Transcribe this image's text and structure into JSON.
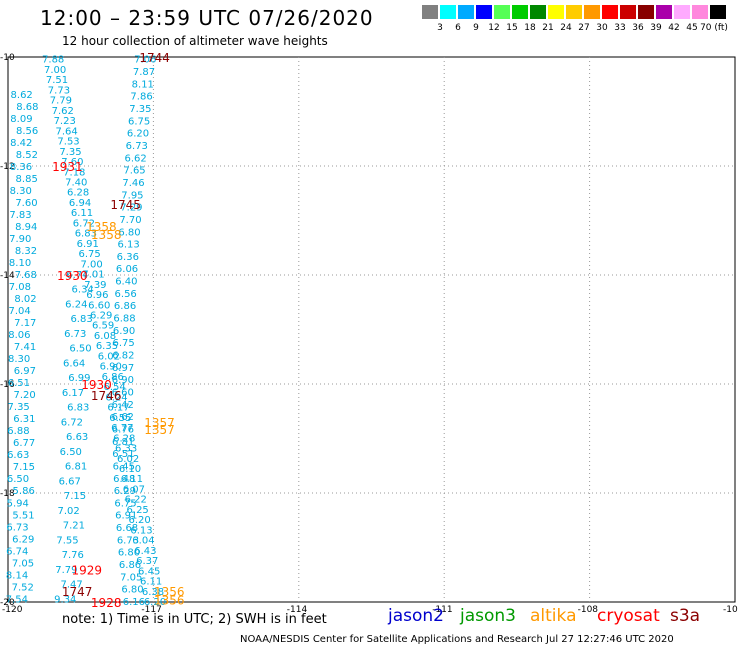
{
  "header": {
    "title": "12:00 – 23:59 UTC 07/26/2020",
    "subtitle": "12 hour collection of altimeter wave heights"
  },
  "legend_scale": {
    "labels": [
      "3",
      "6",
      "9",
      "12",
      "15",
      "18",
      "21",
      "24",
      "27",
      "30",
      "33",
      "36",
      "39",
      "42",
      "45",
      "70 (ft)"
    ],
    "colors": [
      "#808080",
      "#00ffff",
      "#00aaff",
      "#0000ff",
      "#55ff55",
      "#00cc00",
      "#008800",
      "#ffff00",
      "#ffcc00",
      "#ff9900",
      "#ff0000",
      "#cc0000",
      "#880000",
      "#aa00aa",
      "#ffaaff",
      "#ff88dd",
      "#000000"
    ]
  },
  "map": {
    "lon_ticks": [
      "-120",
      "-117",
      "-114",
      "-111",
      "-108",
      "-10"
    ],
    "lat_ticks": [
      "-10",
      "-12",
      "-14",
      "-16",
      "-18",
      "-20"
    ],
    "tracks": [
      {
        "color": "#00aadd",
        "values": [
          "7.88",
          "7.00",
          "7.51",
          "7.73",
          "7.79",
          "7.62",
          "7.23",
          "7.64",
          "7.53",
          "7.35",
          "7.60",
          "7.18",
          "7.40",
          "6.28",
          "6.94",
          "6.11",
          "6.72",
          "6.83",
          "6.91",
          "6.75",
          "7.00",
          "7.01",
          "7.39",
          "6.96",
          "6.60",
          "6.29",
          "6.59",
          "6.08",
          "6.35",
          "6.02",
          "6.90",
          "6.86",
          "6.54",
          "6.24",
          "6.17",
          "6.55",
          "6.77",
          "6.28",
          "6.33",
          "6.02",
          "6.10",
          "6.11",
          "6.07",
          "6.22",
          "6.25",
          "6.20",
          "6.13",
          "6.04",
          "6.43",
          "6.37",
          "6.45",
          "6.11",
          "6.38",
          "6.20"
        ]
      },
      {
        "color": "#00aadd",
        "values": [
          "7.06",
          "7.87",
          "8.11",
          "7.86",
          "7.35",
          "6.75",
          "6.20",
          "6.73",
          "6.62",
          "7.65",
          "7.46",
          "7.95",
          "7.29",
          "7.70",
          "6.80",
          "6.13",
          "6.36",
          "6.06",
          "6.40",
          "6.56",
          "6.86",
          "6.88",
          "6.90",
          "6.75",
          "6.82",
          "6.97",
          "6.90",
          "6.60",
          "6.42",
          "6.62",
          "6.76",
          "6.81",
          "6.51",
          "6.45",
          "6.48",
          "6.29",
          "6.75",
          "6.91",
          "6.68",
          "6.73",
          "6.80",
          "6.86",
          "7.05",
          "6.80",
          "6.16"
        ]
      },
      {
        "color": "#00aadd",
        "values": [
          "8.62",
          "8.68",
          "8.09",
          "8.56",
          "8.42",
          "8.52",
          "8.36",
          "8.85",
          "8.30",
          "7.60",
          "7.83",
          "8.94",
          "7.90",
          "8.32",
          "8.10",
          "7.68",
          "7.08",
          "8.02",
          "7.04",
          "7.17",
          "8.06",
          "7.41",
          "8.30",
          "6.97",
          "6.51",
          "7.20",
          "7.35",
          "6.31",
          "6.88",
          "6.77",
          "6.63",
          "7.15",
          "6.50",
          "5.86",
          "5.94",
          "5.51",
          "6.73",
          "6.29",
          "6.74",
          "7.05",
          "8.14",
          "7.52",
          "7.54"
        ]
      },
      {
        "color": "#00aadd",
        "values": [
          "6.74",
          "6.34",
          "6.24",
          "6.83",
          "6.73",
          "6.50",
          "6.64",
          "6.99",
          "6.17",
          "6.83",
          "6.72",
          "6.63",
          "6.50",
          "6.81",
          "6.67",
          "7.15",
          "7.02",
          "7.21",
          "7.55",
          "7.76",
          "7.79",
          "7.47",
          "9.34"
        ]
      }
    ],
    "annotations": [
      {
        "text": "1744",
        "color": "#8b0000",
        "lon": -117.0,
        "lat": -10.0
      },
      {
        "text": "1931",
        "color": "#ff0000",
        "lon": -118.8,
        "lat": -12.0
      },
      {
        "text": "1745",
        "color": "#8b0000",
        "lon": -117.6,
        "lat": -12.7
      },
      {
        "text": "1358",
        "color": "#ff9900",
        "lon": -118.1,
        "lat": -13.1
      },
      {
        "text": "1358",
        "color": "#ff9900",
        "lon": -118.0,
        "lat": -13.25
      },
      {
        "text": "1930",
        "color": "#ff0000",
        "lon": -118.7,
        "lat": -14.0
      },
      {
        "text": "1930",
        "color": "#ff0000",
        "lon": -118.2,
        "lat": -16.0
      },
      {
        "text": "1746",
        "color": "#8b0000",
        "lon": -118.0,
        "lat": -16.2
      },
      {
        "text": "1357",
        "color": "#ff9900",
        "lon": -116.9,
        "lat": -16.7
      },
      {
        "text": "1357",
        "color": "#ff9900",
        "lon": -116.9,
        "lat": -16.83
      },
      {
        "text": "1929",
        "color": "#ff0000",
        "lon": -118.4,
        "lat": -19.4
      },
      {
        "text": "1747",
        "color": "#8b0000",
        "lon": -118.6,
        "lat": -19.8
      },
      {
        "text": "1356",
        "color": "#ff9900",
        "lon": -116.7,
        "lat": -19.8
      },
      {
        "text": "1356",
        "color": "#ff9900",
        "lon": -116.7,
        "lat": -19.95
      },
      {
        "text": "1928",
        "color": "#ff0000",
        "lon": -118.0,
        "lat": -20.0
      }
    ]
  },
  "footer": {
    "note": "note:  1) Time is in UTC;  2) SWH is in feet",
    "satellites": [
      {
        "name": "jason2",
        "color": "#0000cc"
      },
      {
        "name": "jason3",
        "color": "#009900"
      },
      {
        "name": "altika",
        "color": "#ff9900"
      },
      {
        "name": "cryosat",
        "color": "#ff0000"
      },
      {
        "name": "s3a",
        "color": "#8b0000"
      }
    ],
    "credit": "NOAA/NESDIS Center for Satellite Applications and Research    Jul 27 12:27:46 UTC 2020"
  }
}
